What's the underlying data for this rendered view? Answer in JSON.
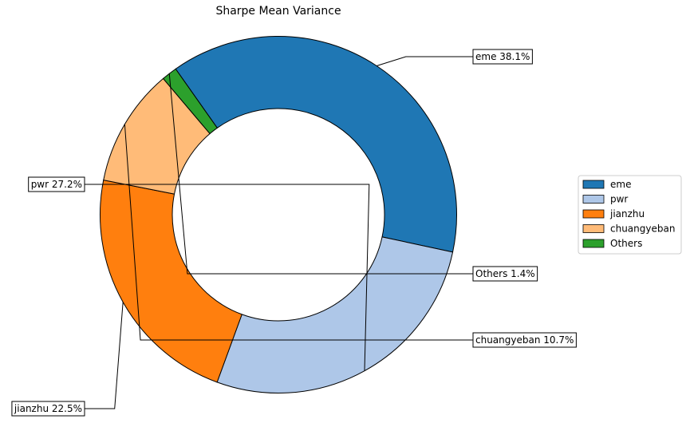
{
  "chart_data": {
    "type": "pie",
    "style": "donut",
    "title": "Sharpe Mean Variance",
    "categories": [
      "eme",
      "pwr",
      "jianzhu",
      "chuangyeban",
      "Others"
    ],
    "values": [
      38.1,
      27.2,
      22.5,
      10.7,
      1.4
    ],
    "value_labels": [
      "38.1%",
      "27.2%",
      "22.5%",
      "10.7%",
      "1.4%"
    ],
    "colors": [
      "#1f77b4",
      "#aec7e8",
      "#ff7f0e",
      "#ffbb78",
      "#2ca02c"
    ],
    "legend": {
      "position": "right",
      "entries": [
        "eme",
        "pwr",
        "jianzhu",
        "chuangyeban",
        "Others"
      ]
    }
  }
}
